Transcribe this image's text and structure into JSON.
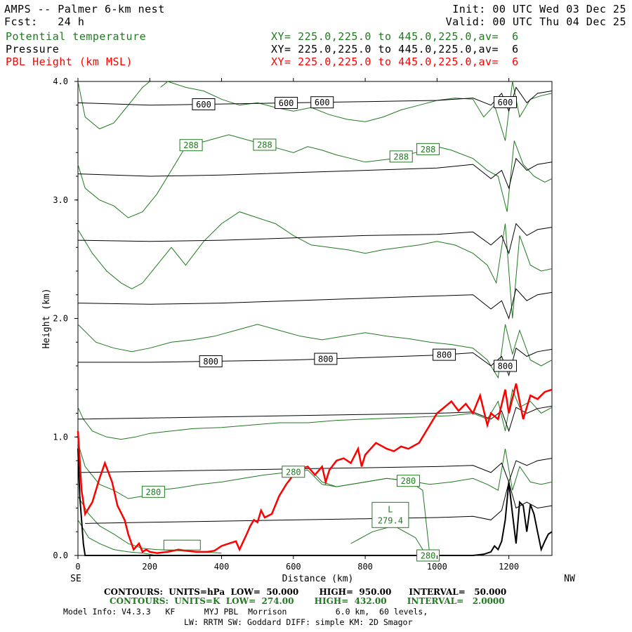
{
  "header": {
    "title": "AMPS -- Palmer 6-km nest",
    "forecast": "Fcst:   24 h",
    "init": "Init: 00 UTC Wed 03 Dec 25",
    "valid": "Valid: 00 UTC Thu 04 Dec 25",
    "fields": [
      {
        "name": "Potential temperature",
        "xy": "XY= 225.0,225.0 to 445.0,225.0,av=  6",
        "color": "#1f7a1f"
      },
      {
        "name": "Pressure",
        "xy": "XY= 225.0,225.0 to 445.0,225.0,av=  6",
        "color": "#000000"
      },
      {
        "name": "PBL Height (km MSL)",
        "xy": "XY= 225.0,225.0 to 445.0,225.0,av=  6",
        "color": "#ff0000"
      }
    ]
  },
  "footer": {
    "contours_pressure": "CONTOURS:  UNITS=hPa  LOW=  50.000       HIGH=  950.00      INTERVAL=   50.000",
    "contours_theta": "CONTOURS:  UNITS=K  LOW=  274.00       HIGH=  432.00       INTERVAL=   2.0000",
    "model_info": "Model Info: V4.3.3   KF      MYJ PBL  Morrison          6.0 km,  60 levels,",
    "physics": "LW: RRTM SW: Goddard DIFF: simple KM: 2D Smagor"
  },
  "chart_data": {
    "type": "line",
    "xlabel": "Distance (km)",
    "ylabel": "Height (km)",
    "xlim": [
      0,
      1320
    ],
    "ylim": [
      0,
      4.0
    ],
    "x_ticks": [
      0,
      200,
      400,
      600,
      800,
      1000,
      1200
    ],
    "y_ticks": [
      "0.0",
      "1.0",
      "2.0",
      "3.0",
      "4.0"
    ],
    "x_end_labels": {
      "left": "SE",
      "right": "NW"
    },
    "colors": {
      "theta": "#1f7a1f",
      "pressure": "#000000",
      "pbl": "#ff0000"
    },
    "pbl_height": {
      "x": [
        0,
        10,
        20,
        40,
        60,
        75,
        95,
        110,
        130,
        140,
        155,
        170,
        180,
        190,
        200,
        220,
        250,
        280,
        300,
        330,
        360,
        380,
        400,
        420,
        440,
        450,
        470,
        480,
        490,
        500,
        510,
        520,
        540,
        560,
        580,
        600,
        610,
        640,
        660,
        680,
        690,
        700,
        720,
        740,
        760,
        780,
        790,
        800,
        830,
        860,
        880,
        900,
        920,
        950,
        980,
        1000,
        1020,
        1040,
        1060,
        1080,
        1100,
        1120,
        1140,
        1150,
        1170,
        1190,
        1200,
        1220,
        1240,
        1260,
        1280,
        1300,
        1320
      ],
      "y": [
        1.05,
        0.55,
        0.35,
        0.45,
        0.65,
        0.78,
        0.62,
        0.42,
        0.3,
        0.18,
        0.05,
        0.1,
        0.03,
        0.05,
        0.03,
        0.02,
        0.03,
        0.05,
        0.04,
        0.03,
        0.03,
        0.04,
        0.08,
        0.1,
        0.12,
        0.05,
        0.18,
        0.25,
        0.3,
        0.28,
        0.38,
        0.32,
        0.35,
        0.5,
        0.6,
        0.68,
        0.72,
        0.75,
        0.68,
        0.75,
        0.62,
        0.72,
        0.8,
        0.82,
        0.78,
        0.9,
        0.75,
        0.85,
        0.95,
        0.9,
        0.88,
        0.92,
        0.9,
        0.95,
        1.1,
        1.2,
        1.25,
        1.3,
        1.22,
        1.28,
        1.2,
        1.35,
        1.1,
        1.2,
        1.15,
        1.4,
        1.2,
        1.45,
        1.15,
        1.35,
        1.32,
        1.38,
        1.4
      ]
    },
    "terrain": {
      "x": [
        0,
        5,
        15,
        20,
        25,
        40,
        1100,
        1130,
        1150,
        1160,
        1170,
        1180,
        1190,
        1200,
        1210,
        1220,
        1230,
        1240,
        1250,
        1260,
        1270,
        1280,
        1290,
        1300,
        1310,
        1320
      ],
      "y": [
        0.9,
        0.5,
        0.1,
        0.0,
        0.0,
        0.0,
        0.0,
        0.01,
        0.03,
        0.08,
        0.05,
        0.12,
        0.3,
        0.62,
        0.35,
        0.1,
        0.45,
        0.42,
        0.2,
        0.43,
        0.35,
        0.2,
        0.05,
        0.12,
        0.18,
        0.2
      ]
    },
    "pressure_contours": [
      {
        "label": "600",
        "x": [
          0,
          200,
          400,
          600,
          800,
          1000,
          1100,
          1150,
          1180,
          1200,
          1220,
          1250,
          1280,
          1320
        ],
        "y": [
          3.82,
          3.8,
          3.81,
          3.82,
          3.83,
          3.84,
          3.86,
          3.8,
          3.9,
          3.75,
          3.95,
          3.82,
          3.9,
          3.92
        ],
        "label_x": [
          350,
          580,
          680,
          1190
        ]
      },
      {
        "x": [
          0,
          200,
          400,
          600,
          800,
          1000,
          1100,
          1150,
          1180,
          1200,
          1220,
          1250,
          1280,
          1320
        ],
        "y": [
          3.22,
          3.2,
          3.21,
          3.23,
          3.25,
          3.27,
          3.3,
          3.18,
          3.25,
          3.1,
          3.35,
          3.25,
          3.3,
          3.32
        ]
      },
      {
        "x": [
          0,
          200,
          400,
          600,
          800,
          1000,
          1100,
          1150,
          1180,
          1200,
          1220,
          1250,
          1280,
          1320
        ],
        "y": [
          2.66,
          2.65,
          2.66,
          2.68,
          2.7,
          2.71,
          2.73,
          2.62,
          2.7,
          2.55,
          2.8,
          2.7,
          2.75,
          2.77
        ]
      },
      {
        "x": [
          0,
          200,
          400,
          600,
          800,
          1000,
          1100,
          1150,
          1180,
          1200,
          1220,
          1250,
          1280,
          1320
        ],
        "y": [
          2.13,
          2.12,
          2.13,
          2.15,
          2.17,
          2.19,
          2.2,
          2.08,
          2.15,
          2.0,
          2.25,
          2.15,
          2.2,
          2.22
        ]
      },
      {
        "label": "800",
        "x": [
          0,
          200,
          400,
          600,
          800,
          1000,
          1100,
          1150,
          1180,
          1200,
          1220,
          1250,
          1280,
          1320
        ],
        "y": [
          1.63,
          1.63,
          1.64,
          1.65,
          1.67,
          1.69,
          1.71,
          1.6,
          1.68,
          1.52,
          1.75,
          1.68,
          1.72,
          1.74
        ],
        "label_x": [
          370,
          690,
          1020,
          1190
        ]
      },
      {
        "x": [
          0,
          200,
          400,
          600,
          800,
          1000,
          1100,
          1150,
          1180,
          1200,
          1220,
          1250,
          1280,
          1320
        ],
        "y": [
          1.15,
          1.16,
          1.17,
          1.18,
          1.19,
          1.2,
          1.21,
          1.15,
          1.22,
          1.05,
          1.25,
          1.2,
          1.24,
          1.26
        ]
      },
      {
        "x": [
          0,
          200,
          400,
          600,
          800,
          1000,
          1100,
          1150,
          1180,
          1200,
          1220,
          1250,
          1280,
          1320
        ],
        "y": [
          0.7,
          0.71,
          0.72,
          0.73,
          0.74,
          0.75,
          0.76,
          0.7,
          0.78,
          0.62,
          0.8,
          0.76,
          0.8,
          0.82
        ]
      },
      {
        "x": [
          20,
          200,
          400,
          600,
          800,
          1000,
          1100,
          1150,
          1180,
          1200,
          1220,
          1250,
          1280,
          1320
        ],
        "y": [
          0.27,
          0.28,
          0.29,
          0.3,
          0.31,
          0.32,
          0.33,
          0.3,
          0.38,
          0.62,
          0.4,
          0.45,
          0.4,
          0.42
        ]
      }
    ],
    "theta_contours": [
      {
        "x": [
          0,
          20,
          60,
          100,
          140,
          180,
          200
        ],
        "y": [
          4.0,
          3.7,
          3.6,
          3.65,
          3.8,
          3.95,
          4.0
        ]
      },
      {
        "x": [
          230,
          250,
          300,
          350,
          400,
          450,
          500,
          550,
          600,
          650,
          700,
          750,
          800,
          850,
          900,
          950,
          1000,
          1050,
          1100,
          1130,
          1160,
          1190,
          1210,
          1230,
          1260,
          1290,
          1320
        ],
        "y": [
          3.95,
          4.0,
          3.95,
          3.92,
          3.85,
          3.8,
          3.82,
          3.78,
          3.75,
          3.78,
          3.72,
          3.68,
          3.66,
          3.7,
          3.76,
          3.8,
          3.84,
          3.86,
          3.85,
          3.7,
          3.8,
          3.5,
          4.0,
          3.7,
          3.85,
          3.88,
          3.9
        ]
      },
      {
        "label": "288",
        "x": [
          0,
          20,
          60,
          100,
          140,
          180,
          220,
          260,
          300,
          360,
          420,
          480,
          540,
          600,
          640,
          680,
          720,
          760,
          800,
          880,
          940,
          1000,
          1040,
          1100,
          1140,
          1170,
          1195,
          1215,
          1240,
          1270,
          1300,
          1320
        ],
        "y": [
          3.3,
          3.1,
          3.0,
          2.95,
          2.85,
          2.9,
          3.05,
          3.25,
          3.45,
          3.5,
          3.55,
          3.5,
          3.45,
          3.4,
          3.45,
          3.42,
          3.38,
          3.35,
          3.32,
          3.35,
          3.4,
          3.45,
          3.42,
          3.35,
          3.25,
          3.2,
          2.9,
          3.5,
          3.3,
          3.2,
          3.15,
          3.18
        ],
        "label_x": [
          315,
          520,
          900,
          975
        ]
      },
      {
        "x": [
          0,
          40,
          80,
          120,
          150,
          180,
          220,
          260,
          300,
          350,
          400,
          450,
          500,
          550,
          600,
          650,
          700,
          750,
          800,
          850,
          900,
          950,
          1000,
          1050,
          1100,
          1140,
          1165,
          1190,
          1210,
          1230,
          1260,
          1290,
          1320
        ],
        "y": [
          2.75,
          2.55,
          2.4,
          2.3,
          2.25,
          2.3,
          2.45,
          2.6,
          2.45,
          2.65,
          2.8,
          2.9,
          2.85,
          2.8,
          2.7,
          2.62,
          2.6,
          2.58,
          2.55,
          2.58,
          2.6,
          2.62,
          2.65,
          2.62,
          2.55,
          2.45,
          2.3,
          2.8,
          2.0,
          2.7,
          2.45,
          2.4,
          2.42
        ]
      },
      {
        "x": [
          0,
          50,
          100,
          150,
          200,
          260,
          320,
          380,
          440,
          500,
          560,
          620,
          680,
          740,
          800,
          860,
          920,
          980,
          1040,
          1100,
          1140,
          1170,
          1190,
          1210,
          1230,
          1260,
          1290,
          1320
        ],
        "y": [
          1.95,
          1.8,
          1.75,
          1.72,
          1.75,
          1.8,
          1.82,
          1.85,
          1.9,
          1.95,
          1.9,
          1.85,
          1.82,
          1.85,
          1.88,
          1.85,
          1.83,
          1.8,
          1.78,
          1.75,
          1.65,
          1.5,
          1.95,
          1.7,
          1.9,
          1.65,
          1.6,
          1.65
        ]
      },
      {
        "x": [
          0,
          15,
          40,
          80,
          120,
          160,
          200,
          260,
          320,
          400,
          480,
          560,
          640,
          720,
          800,
          880,
          960,
          1040,
          1100,
          1140,
          1170,
          1190,
          1210,
          1230,
          1260,
          1290,
          1320
        ],
        "y": [
          1.25,
          1.15,
          1.05,
          1.0,
          0.98,
          1.0,
          1.03,
          1.05,
          1.07,
          1.08,
          1.1,
          1.12,
          1.12,
          1.14,
          1.15,
          1.16,
          1.17,
          1.18,
          1.2,
          1.15,
          1.3,
          1.05,
          1.4,
          1.25,
          1.3,
          1.2,
          1.25
        ]
      },
      {
        "label": "280",
        "x": [
          0,
          20,
          60,
          100,
          140,
          180,
          220,
          280,
          340,
          400,
          460,
          520,
          580,
          640,
          680,
          720,
          760,
          800,
          860,
          920,
          980,
          1040,
          1100,
          1140,
          1170,
          1190,
          1210,
          1230,
          1260,
          1290,
          1320
        ],
        "y": [
          0.95,
          0.75,
          0.6,
          0.55,
          0.48,
          0.5,
          0.55,
          0.57,
          0.6,
          0.62,
          0.65,
          0.68,
          0.7,
          0.72,
          0.6,
          0.58,
          0.6,
          0.62,
          0.65,
          0.63,
          0.6,
          0.62,
          0.65,
          0.6,
          0.55,
          0.9,
          0.55,
          0.75,
          0.62,
          0.6,
          0.62
        ],
        "label_x": [
          210,
          600
        ]
      },
      {
        "label": "280",
        "x": [
          640,
          680,
          720,
          760,
          800,
          860,
          920,
          960,
          980
        ],
        "y": [
          0.75,
          0.62,
          0.58,
          0.6,
          0.62,
          0.65,
          0.63,
          0.55,
          0.0
        ],
        "label_x": [
          920
        ]
      },
      {
        "x": [
          0,
          30,
          60,
          100,
          140,
          180,
          220,
          280,
          340,
          400
        ],
        "y": [
          0.5,
          0.35,
          0.25,
          0.18,
          0.1,
          0.06,
          0.05,
          0.04,
          0.03,
          0.02
        ]
      },
      {
        "x": [
          0,
          30,
          60,
          100,
          140,
          180,
          220
        ],
        "y": [
          0.3,
          0.15,
          0.1,
          0.05,
          0.03,
          0.02,
          0.0
        ]
      },
      {
        "label": "280",
        "x": [
          760,
          820,
          880,
          940,
          970
        ],
        "y": [
          0.1,
          0.2,
          0.25,
          0.15,
          0.0
        ],
        "label_x": [
          975
        ]
      }
    ],
    "annotations": [
      {
        "text": "L",
        "subtext": "279.4",
        "x": 870,
        "y": 0.33
      },
      {
        "text": "",
        "x": 290,
        "y": 0.07
      }
    ]
  }
}
